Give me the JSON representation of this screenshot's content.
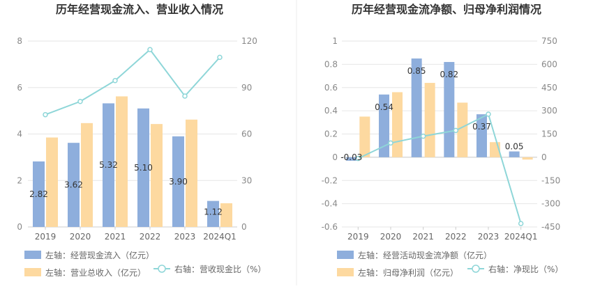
{
  "chart_data": [
    {
      "type": "bar",
      "title": "历年经营现金流入、营业收入情况",
      "categories": [
        "2019",
        "2020",
        "2021",
        "2022",
        "2023",
        "2024Q1"
      ],
      "left_axis": {
        "ylim": [
          0,
          8
        ],
        "ticks": [
          "0",
          "2",
          "4",
          "6",
          "8"
        ]
      },
      "right_axis": {
        "ylim": [
          0,
          120
        ],
        "ticks": [
          "0",
          "30",
          "60",
          "90",
          "120"
        ]
      },
      "series": [
        {
          "name": "左轴：经营现金流入（亿元）",
          "axis": "left",
          "type": "bar",
          "color": "#8eaedc",
          "values": [
            2.82,
            3.62,
            5.32,
            5.1,
            3.9,
            1.12
          ],
          "labels": [
            "2.82",
            "3.62",
            "5.32",
            "5.10",
            "3.90",
            "1.12"
          ]
        },
        {
          "name": "左轴：营业总收入（亿元）",
          "axis": "left",
          "type": "bar",
          "color": "#fdd9a0",
          "values": [
            3.85,
            4.47,
            5.62,
            4.43,
            4.62,
            1.02
          ]
        },
        {
          "name": "右轴：营收现金比（%）",
          "axis": "right",
          "type": "line",
          "color": "#8ed6d8",
          "values": [
            72.5,
            81,
            94.5,
            114.5,
            84.5,
            109.5
          ]
        }
      ],
      "grid": true,
      "legend_position": "bottom"
    },
    {
      "type": "bar",
      "title": "历年经营现金流净额、归母净利润情况",
      "categories": [
        "2019",
        "2020",
        "2021",
        "2022",
        "2023",
        "2024Q1"
      ],
      "left_axis": {
        "ylim": [
          -0.6,
          1
        ],
        "ticks": [
          "-0.6",
          "-0.4",
          "-0.2",
          "0",
          "0.2",
          "0.4",
          "0.6",
          "0.8",
          "1"
        ]
      },
      "right_axis": {
        "ylim": [
          -450,
          750
        ],
        "ticks": [
          "-450",
          "-300",
          "-150",
          "0",
          "150",
          "300",
          "450",
          "600",
          "750"
        ]
      },
      "series": [
        {
          "name": "左轴：经营活动现金流净额（亿元）",
          "axis": "left",
          "type": "bar",
          "color": "#8eaedc",
          "values": [
            -0.03,
            0.54,
            0.85,
            0.82,
            0.37,
            0.05
          ],
          "labels": [
            "-0.03",
            "0.54",
            "0.85",
            "0.82",
            "0.37",
            "0.05"
          ]
        },
        {
          "name": "左轴：归母净利润（亿元）",
          "axis": "left",
          "type": "bar",
          "color": "#fdd9a0",
          "values": [
            0.35,
            0.56,
            0.64,
            0.47,
            0.13,
            -0.02
          ]
        },
        {
          "name": "右轴：净现比（%）",
          "axis": "right",
          "type": "line",
          "color": "#8ed6d8",
          "values": [
            -8,
            92,
            136,
            173,
            278,
            -428
          ]
        }
      ],
      "grid": true,
      "legend_position": "bottom"
    }
  ]
}
